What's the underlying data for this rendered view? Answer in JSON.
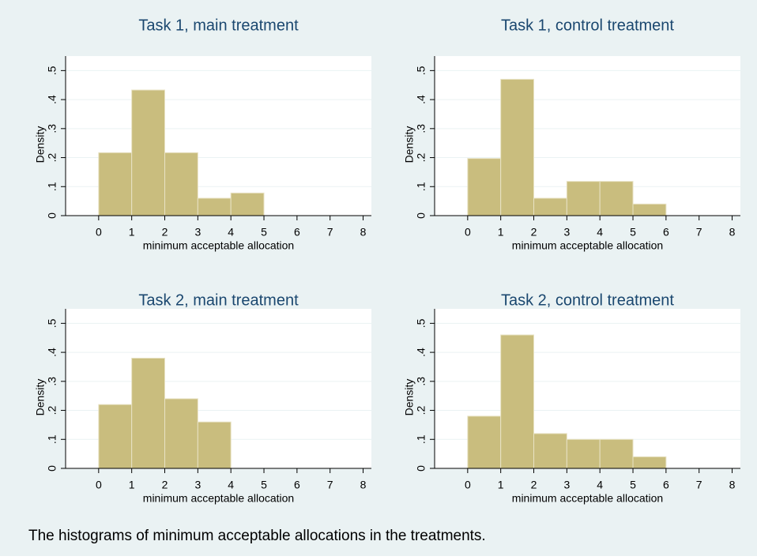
{
  "chart_data": [
    {
      "type": "histogram",
      "title": "Task 1, main treatment",
      "xlabel": "minimum acceptable allocation",
      "ylabel": "Density",
      "bins": [
        0,
        1,
        2,
        3,
        4,
        5
      ],
      "values": [
        0.217,
        0.433,
        0.217,
        0.06,
        0.078
      ],
      "color": "#c9bd7e",
      "xlim": [
        -1,
        8.25
      ],
      "xticks": [
        0,
        1,
        2,
        3,
        4,
        5,
        6,
        7,
        8
      ],
      "ylim": [
        0,
        0.55
      ],
      "yticks": [
        0,
        {
          "value": 0.1,
          "label": ".1"
        },
        {
          "value": 0.2,
          "label": ".2"
        },
        {
          "value": 0.3,
          "label": ".3"
        },
        {
          "value": 0.4,
          "label": ".4"
        },
        {
          "value": 0.5,
          "label": ".5"
        }
      ],
      "grid": true
    },
    {
      "type": "histogram",
      "title": "Task 1, control treatment",
      "xlabel": "minimum acceptable allocation",
      "ylabel": "Density",
      "bins": [
        0,
        1,
        2,
        3,
        4,
        5,
        6
      ],
      "values": [
        0.197,
        0.47,
        0.06,
        0.118,
        0.118,
        0.04
      ],
      "color": "#c9bd7e",
      "xlim": [
        -1,
        8.25
      ],
      "xticks": [
        0,
        1,
        2,
        3,
        4,
        5,
        6,
        7,
        8
      ],
      "ylim": [
        0,
        0.55
      ],
      "yticks": [
        0,
        {
          "value": 0.1,
          "label": ".1"
        },
        {
          "value": 0.2,
          "label": ".2"
        },
        {
          "value": 0.3,
          "label": ".3"
        },
        {
          "value": 0.4,
          "label": ".4"
        },
        {
          "value": 0.5,
          "label": ".5"
        }
      ],
      "grid": true
    },
    {
      "type": "histogram",
      "title": "Task 2, main treatment",
      "xlabel": "minimum acceptable allocation",
      "ylabel": "Density",
      "bins": [
        0,
        1,
        2,
        3,
        4
      ],
      "values": [
        0.22,
        0.38,
        0.24,
        0.16
      ],
      "color": "#c9bd7e",
      "xlim": [
        -1,
        8.25
      ],
      "xticks": [
        0,
        1,
        2,
        3,
        4,
        5,
        6,
        7,
        8
      ],
      "ylim": [
        0,
        0.55
      ],
      "yticks": [
        0,
        {
          "value": 0.1,
          "label": ".1"
        },
        {
          "value": 0.2,
          "label": ".2"
        },
        {
          "value": 0.3,
          "label": ".3"
        },
        {
          "value": 0.4,
          "label": ".4"
        },
        {
          "value": 0.5,
          "label": ".5"
        }
      ],
      "grid": true
    },
    {
      "type": "histogram",
      "title": "Task 2, control treatment",
      "xlabel": "minimum acceptable allocation",
      "ylabel": "Density",
      "bins": [
        0,
        1,
        2,
        3,
        4,
        5,
        6
      ],
      "values": [
        0.18,
        0.46,
        0.12,
        0.1,
        0.1,
        0.04
      ],
      "color": "#c9bd7e",
      "xlim": [
        -1,
        8.25
      ],
      "xticks": [
        0,
        1,
        2,
        3,
        4,
        5,
        6,
        7,
        8
      ],
      "ylim": [
        0,
        0.55
      ],
      "yticks": [
        0,
        {
          "value": 0.1,
          "label": ".1"
        },
        {
          "value": 0.2,
          "label": ".2"
        },
        {
          "value": 0.3,
          "label": ".3"
        },
        {
          "value": 0.4,
          "label": ".4"
        },
        {
          "value": 0.5,
          "label": ".5"
        }
      ],
      "grid": true
    }
  ],
  "caption": "The histograms of minimum acceptable allocations in the treatments."
}
